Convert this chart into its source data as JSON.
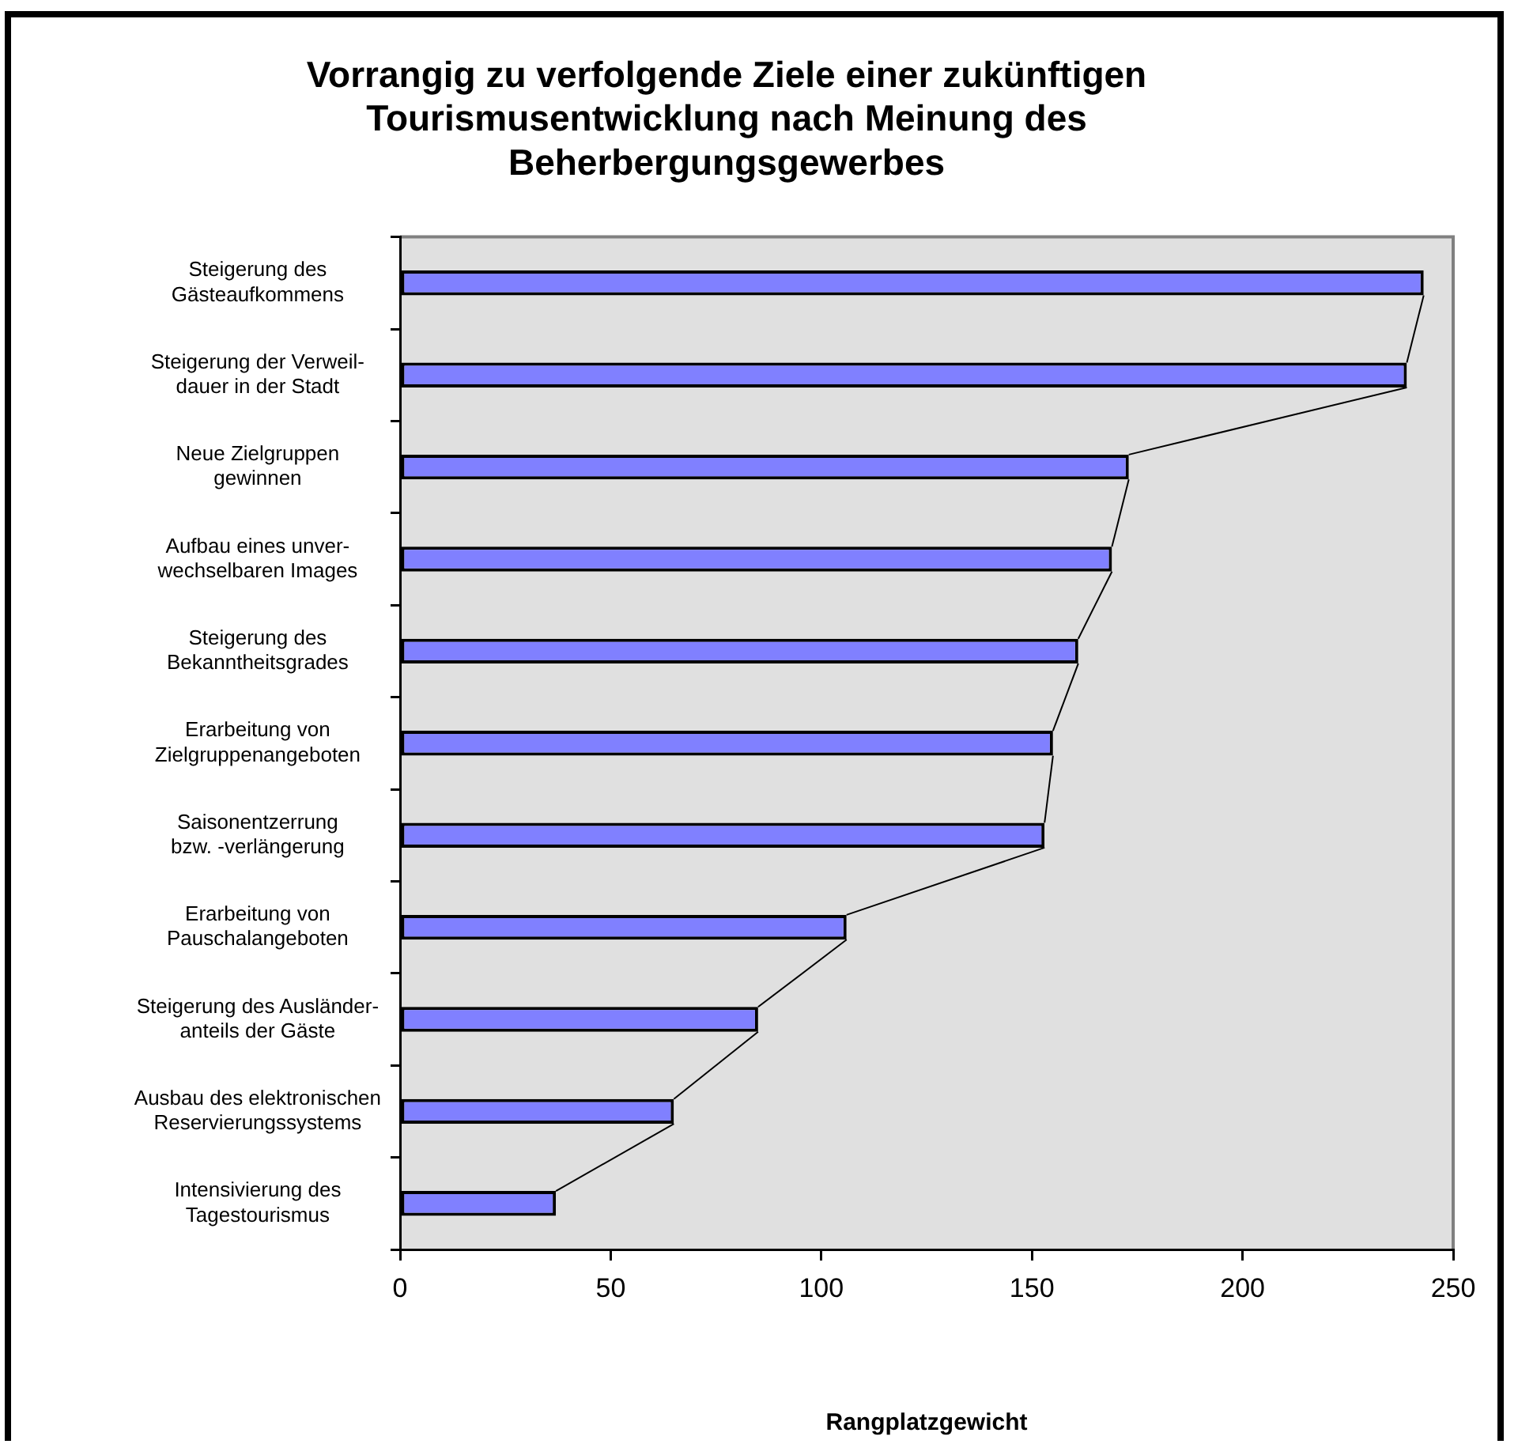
{
  "chart_data": {
    "type": "bar",
    "orientation": "horizontal",
    "title": "Vorrangig zu verfolgende Ziele einer zukünftigen\nTourismusentwicklung nach Meinung des\nBeherbergungsgewerbes",
    "xlabel": "Rangplatzgewicht",
    "categories": [
      "Steigerung des\nGästeaufkommens",
      "Steigerung der Verweil-\ndauer in der Stadt",
      "Neue Zielgruppen\ngewinnen",
      "Aufbau eines unver-\nwechselbaren Images",
      "Steigerung des\nBekanntheitsgrades",
      "Erarbeitung von\nZielgruppenangeboten",
      "Saisonentzerrung\nbzw. -verlängerung",
      "Erarbeitung von\nPauschalangeboten",
      "Steigerung des Ausländer-\nanteils der Gäste",
      "Ausbau des elektronischen\nReservierungssystems",
      "Intensivierung des\nTagestourismus"
    ],
    "values": [
      243,
      239,
      173,
      169,
      161,
      155,
      153,
      106,
      85,
      65,
      37
    ],
    "color": "#8080ff",
    "xlim": [
      0,
      250
    ],
    "xticks": [
      0,
      50,
      100,
      150,
      200,
      250
    ],
    "grid": false,
    "legend": false
  }
}
